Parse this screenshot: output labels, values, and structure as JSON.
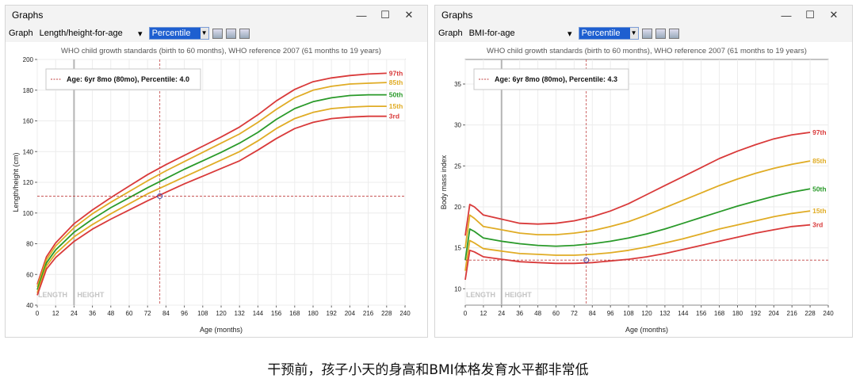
{
  "caption": "干预前，孩子小天的身高和BMI体格发育水平都非常低",
  "window_controls": {
    "minimize": "—",
    "maximize": "☐",
    "close": "✕"
  },
  "colors": {
    "p97": "#d93a3a",
    "p85": "#e0ac25",
    "p50": "#2a9a2a",
    "p15": "#e0ac25",
    "p3": "#d93a3a",
    "marker": "#c04040"
  },
  "panels": [
    {
      "window_title": "Graphs",
      "toolbar": {
        "graph_label": "Graph",
        "graph_value": "Length/height-for-age",
        "mode_value": "Percentile"
      },
      "chart_data": {
        "type": "line",
        "title": "WHO child growth standards (birth to 60 months), WHO reference 2007 (61 months to 19 years)",
        "xlabel": "Age (months)",
        "ylabel": "Length/height (cm)",
        "xlim": [
          0,
          240
        ],
        "ylim": [
          40,
          200
        ],
        "xticks": [
          0,
          12,
          24,
          36,
          48,
          60,
          72,
          84,
          96,
          108,
          120,
          132,
          144,
          156,
          168,
          180,
          192,
          204,
          216,
          228,
          240
        ],
        "yticks": [
          40,
          60,
          80,
          100,
          120,
          140,
          160,
          180,
          200
        ],
        "grid": true,
        "region_labels": [
          "LENGTH",
          "HEIGHT"
        ],
        "region_divider_x": 24,
        "legend_text": "Age: 6yr 8mo (80mo), Percentile: 4.0",
        "legend_position": "top-left",
        "marker": {
          "x": 80,
          "y": 111
        },
        "x": [
          0,
          6,
          12,
          24,
          36,
          48,
          60,
          72,
          84,
          96,
          108,
          120,
          132,
          144,
          156,
          168,
          180,
          192,
          204,
          216,
          228
        ],
        "series": [
          {
            "name": "97th",
            "values": [
              53.5,
              71.5,
              80.5,
              93,
              102,
              110,
              117.5,
              125,
              131.5,
              137.5,
              143.5,
              149.5,
              156,
              164,
              173,
              180.5,
              185.5,
              188,
              189.5,
              190.5,
              191
            ]
          },
          {
            "name": "85th",
            "values": [
              52,
              69.5,
              78.5,
              90.5,
              99.5,
              107,
              114,
              121,
              127.5,
              133.5,
              139.5,
              145.5,
              151.5,
              159,
              167.5,
              175,
              180,
              182.5,
              184,
              184.5,
              185
            ]
          },
          {
            "name": "50th",
            "values": [
              50,
              67.5,
              76,
              87.5,
              96,
              103.5,
              110,
              116.5,
              122.5,
              128.5,
              134,
              139.5,
              145.5,
              152.5,
              161,
              168,
              172.5,
              175,
              176.5,
              177,
              177
            ]
          },
          {
            "name": "15th",
            "values": [
              48,
              65.5,
              73.5,
              84.5,
              92.5,
              99.5,
              106,
              112.5,
              118,
              123.5,
              129,
              134.5,
              140,
              147,
              155,
              161.5,
              165.5,
              168,
              169,
              169.5,
              169.5
            ]
          },
          {
            "name": "3rd",
            "values": [
              46.5,
              63.5,
              71,
              81.5,
              89.5,
              96,
              102,
              108,
              113.5,
              119,
              124,
              129,
              134,
              141,
              148.5,
              155,
              159,
              161.5,
              162.5,
              163,
              163
            ]
          }
        ]
      }
    },
    {
      "window_title": "Graphs",
      "toolbar": {
        "graph_label": "Graph",
        "graph_value": "BMI-for-age",
        "mode_value": "Percentile"
      },
      "chart_data": {
        "type": "line",
        "title": "WHO child growth standards (birth to 60 months), WHO reference 2007 (61 months to 19 years)",
        "xlabel": "Age (months)",
        "ylabel": "Body mass index",
        "xlim": [
          0,
          240
        ],
        "ylim": [
          8,
          38
        ],
        "xticks": [
          0,
          12,
          24,
          36,
          48,
          60,
          72,
          84,
          96,
          108,
          120,
          132,
          144,
          156,
          168,
          180,
          192,
          204,
          216,
          228,
          240
        ],
        "yticks": [
          10,
          15,
          20,
          25,
          30,
          35
        ],
        "grid": true,
        "region_labels": [
          "LENGTH",
          "HEIGHT"
        ],
        "region_divider_x": 24,
        "legend_text": "Age: 6yr 8mo (80mo), Percentile: 4.3",
        "legend_position": "top-left",
        "marker": {
          "x": 80,
          "y": 13.5
        },
        "x": [
          0,
          3,
          6,
          12,
          24,
          36,
          48,
          60,
          72,
          84,
          96,
          108,
          120,
          132,
          144,
          156,
          168,
          180,
          192,
          204,
          216,
          228
        ],
        "series": [
          {
            "name": "97th",
            "values": [
              16.5,
              20.3,
              20,
              19,
              18.5,
              18,
              17.9,
              18,
              18.3,
              18.8,
              19.5,
              20.4,
              21.5,
              22.6,
              23.7,
              24.8,
              25.9,
              26.8,
              27.6,
              28.3,
              28.8,
              29.1
            ]
          },
          {
            "name": "85th",
            "values": [
              15,
              19,
              18.6,
              17.6,
              17.2,
              16.8,
              16.6,
              16.6,
              16.8,
              17.1,
              17.6,
              18.2,
              19,
              19.9,
              20.8,
              21.7,
              22.6,
              23.4,
              24.1,
              24.7,
              25.2,
              25.6
            ]
          },
          {
            "name": "50th",
            "values": [
              13.5,
              17.3,
              17,
              16.2,
              15.8,
              15.5,
              15.3,
              15.2,
              15.3,
              15.5,
              15.8,
              16.2,
              16.7,
              17.3,
              18,
              18.7,
              19.4,
              20.1,
              20.7,
              21.3,
              21.8,
              22.2
            ]
          },
          {
            "name": "15th",
            "values": [
              12.2,
              15.9,
              15.6,
              14.9,
              14.6,
              14.3,
              14.2,
              14.1,
              14.1,
              14.2,
              14.4,
              14.7,
              15.1,
              15.6,
              16.1,
              16.7,
              17.3,
              17.8,
              18.3,
              18.8,
              19.2,
              19.5
            ]
          },
          {
            "name": "3rd",
            "values": [
              11.1,
              14.7,
              14.5,
              13.9,
              13.6,
              13.3,
              13.2,
              13.1,
              13.1,
              13.2,
              13.4,
              13.6,
              13.9,
              14.3,
              14.8,
              15.3,
              15.8,
              16.3,
              16.8,
              17.2,
              17.6,
              17.8
            ]
          }
        ]
      }
    }
  ]
}
